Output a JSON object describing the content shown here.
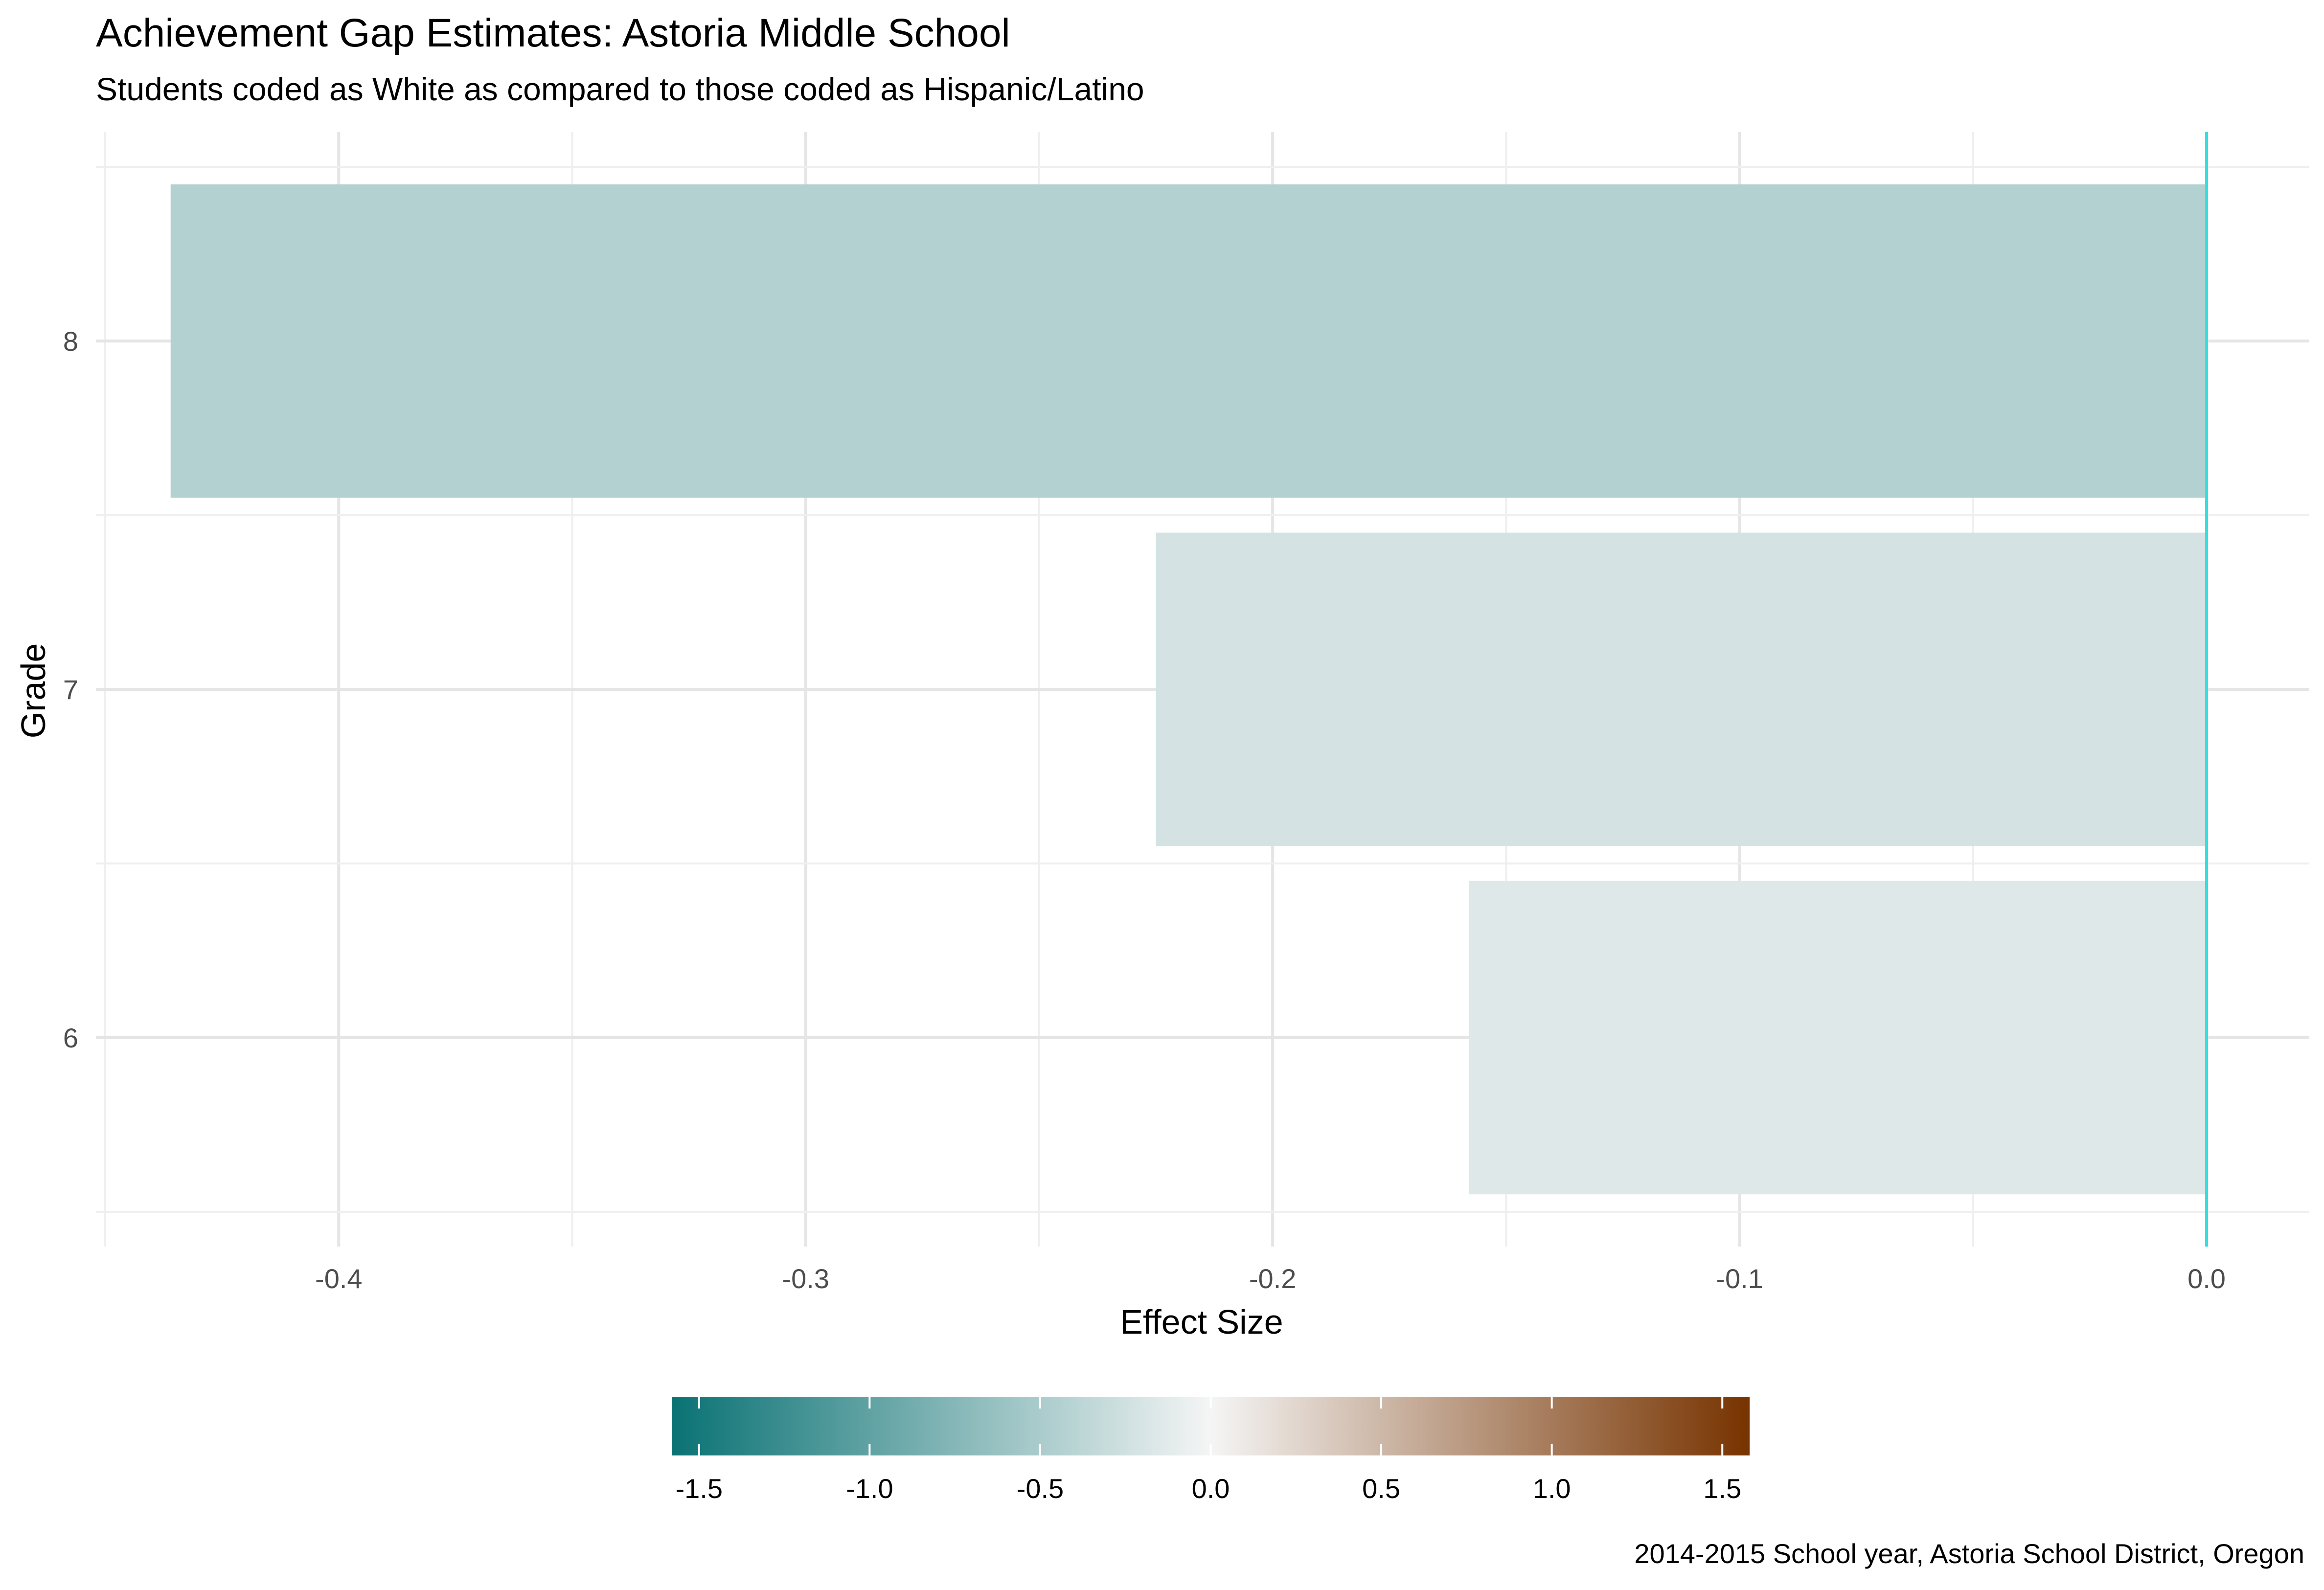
{
  "chart_data": {
    "type": "bar",
    "orientation": "horizontal",
    "title": "Achievement Gap Estimates: Astoria Middle School",
    "subtitle": "Students coded as White as compared to those coded as Hispanic/Latino",
    "xlabel": "Effect Size",
    "ylabel": "Grade",
    "categories": [
      "6",
      "7",
      "8"
    ],
    "values": [
      -0.158,
      -0.225,
      -0.436
    ],
    "xlim": [
      -0.452,
      0.022
    ],
    "x_ticks": [
      -0.4,
      -0.3,
      -0.2,
      -0.1,
      0.0
    ],
    "x_tick_labels": [
      "-0.4",
      "-0.3",
      "-0.2",
      "-0.1",
      "0.0"
    ],
    "reference_line": {
      "x": 0.0,
      "color": "#36dfe0"
    },
    "grid": true,
    "legend": {
      "type": "colorbar",
      "placement": "bottom",
      "range": [
        -1.58,
        1.58
      ],
      "ticks": [
        -1.5,
        -1.0,
        -0.5,
        0.0,
        0.5,
        1.0,
        1.5
      ],
      "tick_labels": [
        "-1.5",
        "-1.0",
        "-0.5",
        "0.0",
        "0.5",
        "1.0",
        "1.5"
      ],
      "low_color": "#0a7274",
      "mid_color": "#f5f5f5",
      "high_color": "#773300"
    },
    "caption": "2014-2015 School year, Astoria School District, Oregon"
  }
}
